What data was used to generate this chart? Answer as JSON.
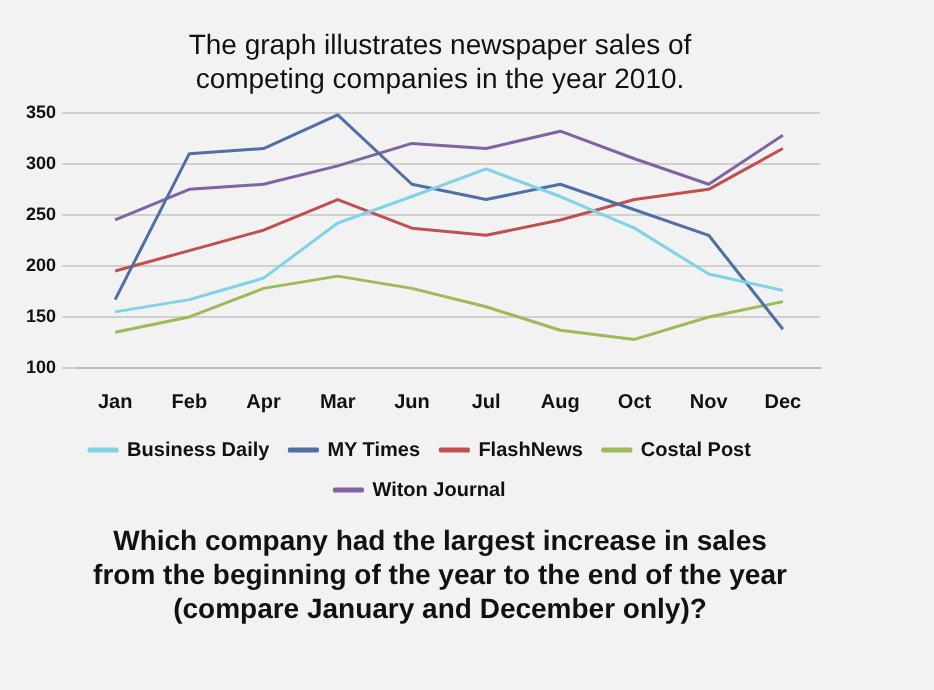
{
  "chart_data": {
    "type": "line",
    "title": "The graph illustrates newspaper sales of competing companies in the year 2010.",
    "categories": [
      "Jan",
      "Feb",
      "Apr",
      "Mar",
      "Jun",
      "Jul",
      "Aug",
      "Oct",
      "Nov",
      "Dec"
    ],
    "series": [
      {
        "name": "Business Daily",
        "color": "#7fd3e6",
        "values": [
          155,
          167,
          188,
          242,
          268,
          295,
          268,
          237,
          192,
          176
        ]
      },
      {
        "name": "MY Times",
        "color": "#4f6fa5",
        "values": [
          167,
          310,
          315,
          348,
          280,
          265,
          280,
          255,
          230,
          138
        ]
      },
      {
        "name": "FlashNews",
        "color": "#c0504d",
        "values": [
          195,
          215,
          235,
          265,
          237,
          230,
          245,
          265,
          275,
          315
        ]
      },
      {
        "name": "Costal Post",
        "color": "#9bbb59",
        "values": [
          135,
          150,
          178,
          190,
          178,
          160,
          137,
          128,
          150,
          165
        ]
      },
      {
        "name": "Witon Journal",
        "color": "#8064a2",
        "values": [
          245,
          275,
          280,
          298,
          320,
          315,
          332,
          305,
          280,
          328
        ]
      }
    ],
    "ylim": [
      100,
      350
    ],
    "yticks": [
      100,
      150,
      200,
      250,
      300,
      350
    ],
    "grid": "y",
    "legend": "bottom",
    "marker": "none",
    "annotations": [
      "Which company had the largest increase in sales from the beginning of the year to the end of the year (compare January and December only)?"
    ]
  }
}
